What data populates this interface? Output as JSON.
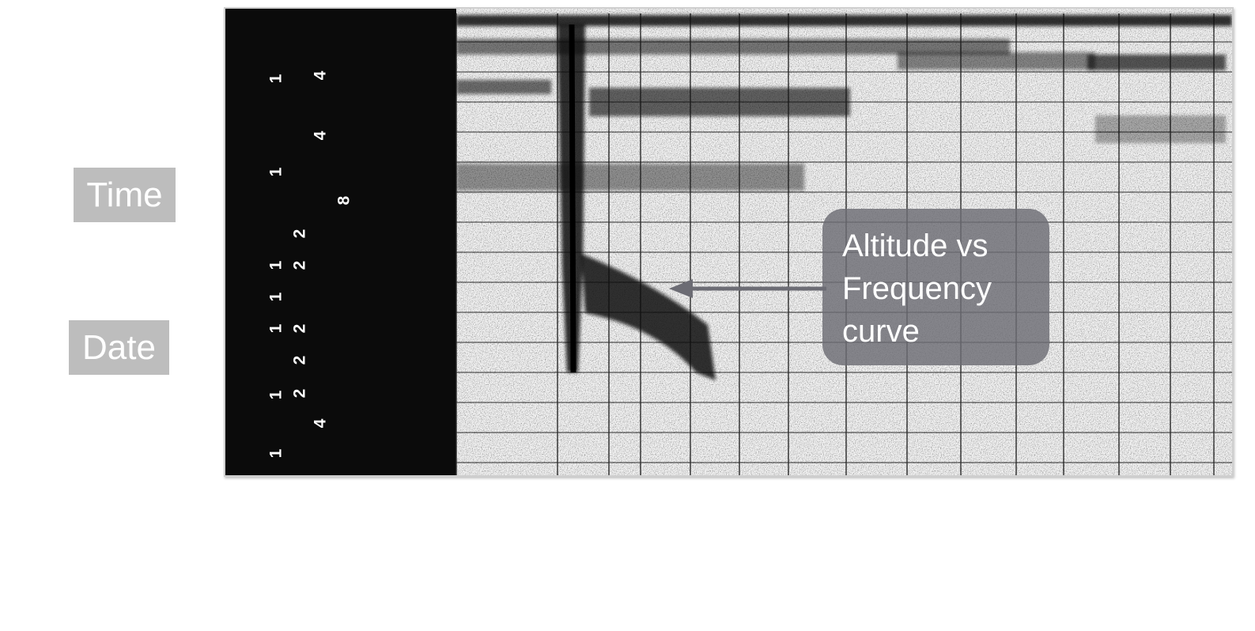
{
  "labels": {
    "time": "Time",
    "date": "Date"
  },
  "callout": {
    "lines": [
      "Altitude vs",
      "Frequency",
      "curve"
    ]
  },
  "film_digits": [
    "1",
    "4",
    "4",
    "1",
    "8",
    "2",
    "1",
    "2",
    "1",
    "1",
    "2",
    "2",
    "1",
    "2",
    "4",
    "1"
  ],
  "colors": {
    "label_bg": "#bdbdbd",
    "callout_bg": "#6c6c74",
    "film_black": "#0b0b0b",
    "grid": "#2a2a2a",
    "echo": "#111111"
  }
}
